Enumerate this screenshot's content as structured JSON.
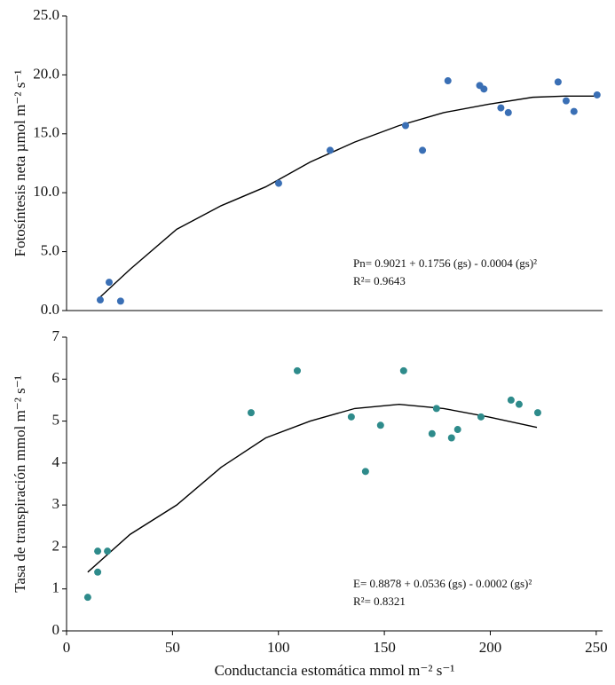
{
  "chart_data": [
    {
      "type": "scatter",
      "ylabel": "Fotosíntesis neta µmol m⁻² s⁻¹",
      "x": [
        15.9,
        20.1,
        25.5,
        100.1,
        124.4,
        160,
        168,
        180,
        195,
        197,
        205,
        208.5,
        232,
        235.8,
        239.5,
        250.4
      ],
      "values": [
        0.9,
        2.4,
        0.8,
        10.8,
        13.6,
        15.7,
        13.6,
        19.5,
        19.1,
        18.8,
        17.2,
        16.8,
        19.4,
        17.8,
        16.9,
        18.3
      ],
      "color": "#3a6fb5",
      "fit": {
        "x": [
          15,
          30,
          52,
          73,
          94,
          115,
          136,
          157,
          178,
          199,
          220,
          235,
          250
        ],
        "values": [
          1.0,
          3.5,
          6.9,
          8.9,
          10.5,
          12.6,
          14.3,
          15.7,
          16.8,
          17.5,
          18.1,
          18.2,
          18.2
        ],
        "color": "#000000"
      },
      "xlim": [
        0,
        253
      ],
      "ylim": [
        0,
        25
      ],
      "yticks": [
        {
          "value": 0,
          "label": "0.0"
        },
        {
          "value": 5,
          "label": "5.0"
        },
        {
          "value": 10,
          "label": "10.0"
        },
        {
          "value": 15,
          "label": "15.0"
        },
        {
          "value": 20,
          "label": "20.0"
        },
        {
          "value": 25,
          "label": "25.0"
        }
      ],
      "annotations": [
        "Pn= 0.9021 + 0.1756 (gs) - 0.0004 (gs)²",
        "R²= 0.9643"
      ]
    },
    {
      "type": "scatter",
      "ylabel": "Tasa de transpiración mmol m⁻² s⁻¹",
      "xlabel": "Conductancia estomática mmol m⁻² s⁻¹",
      "x": [
        10,
        14.7,
        14.7,
        19.3,
        87.1,
        108.9,
        134.4,
        141.1,
        148.2,
        159.1,
        172.5,
        174.6,
        181.7,
        184.6,
        195.6,
        209.8,
        213.6,
        222.4
      ],
      "values": [
        0.8,
        1.9,
        1.4,
        1.9,
        5.2,
        6.2,
        5.1,
        3.8,
        4.9,
        6.2,
        4.7,
        5.3,
        4.6,
        4.8,
        5.1,
        5.5,
        5.4,
        5.2
      ],
      "color": "#2e8b8b",
      "fit": {
        "x": [
          10,
          30,
          52,
          73,
          94,
          115,
          136,
          157,
          178,
          199,
          222
        ],
        "values": [
          1.4,
          2.3,
          3.0,
          3.9,
          4.6,
          5.0,
          5.3,
          5.4,
          5.3,
          5.1,
          4.85
        ],
        "color": "#000000"
      },
      "xlim": [
        0,
        253
      ],
      "xticks": [
        0,
        50,
        100,
        150,
        200,
        250
      ],
      "ylim": [
        0,
        7
      ],
      "yticks": [
        0,
        1,
        2,
        3,
        4,
        5,
        6,
        7
      ],
      "annotations": [
        "E= 0.8878 + 0.0536 (gs) - 0.0002 (gs)²",
        "R²= 0.8321"
      ]
    }
  ]
}
